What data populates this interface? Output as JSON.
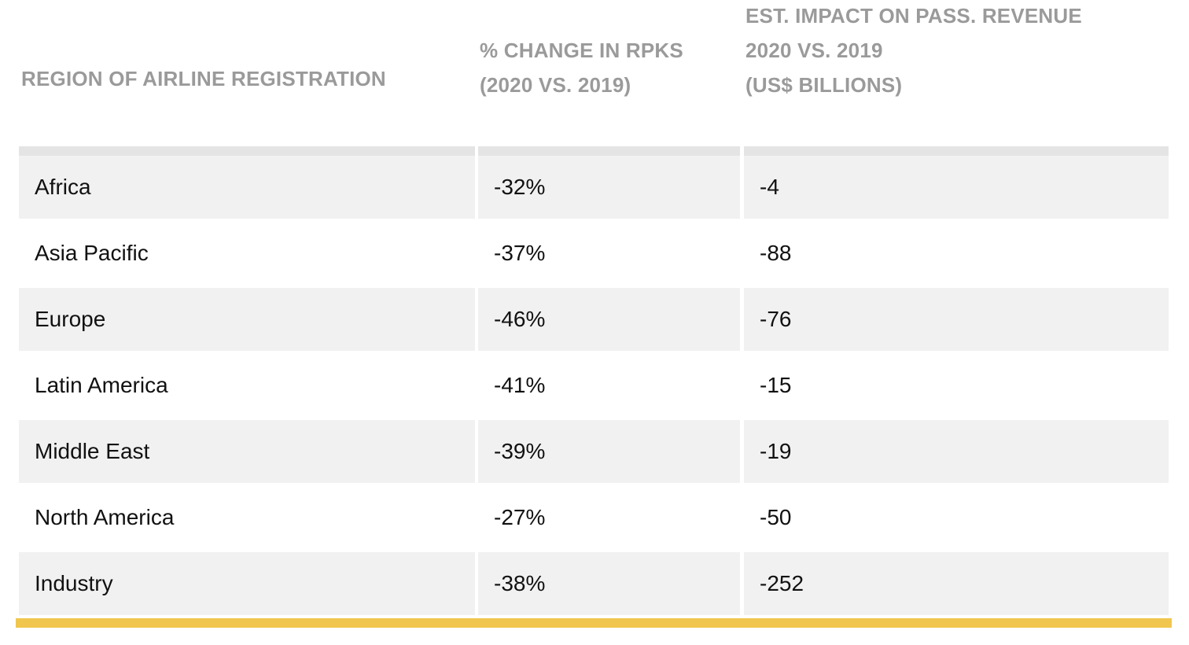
{
  "table": {
    "headers": [
      [
        "REGION OF AIRLINE REGISTRATION"
      ],
      [
        "% CHANGE IN RPKS",
        "(2020 VS. 2019)"
      ],
      [
        "EST. IMPACT ON PASS. REVENUE",
        "2020 VS. 2019",
        "(US$ BILLIONS)"
      ]
    ],
    "rows": [
      {
        "region": "Africa",
        "rpk_change": "-32%",
        "revenue_impact": "-4"
      },
      {
        "region": "Asia Pacific",
        "rpk_change": "-37%",
        "revenue_impact": "-88"
      },
      {
        "region": "Europe",
        "rpk_change": "-46%",
        "revenue_impact": "-76"
      },
      {
        "region": "Latin America",
        "rpk_change": "-41%",
        "revenue_impact": "-15"
      },
      {
        "region": "Middle East",
        "rpk_change": "-39%",
        "revenue_impact": "-19"
      },
      {
        "region": "North America",
        "rpk_change": "-27%",
        "revenue_impact": "-50"
      },
      {
        "region": "Industry",
        "rpk_change": "-38%",
        "revenue_impact": "-252"
      }
    ]
  },
  "colors": {
    "header_text": "#9a9a9a",
    "row_shade": "#f1f1f1",
    "accent_rule": "#f0c64e"
  }
}
